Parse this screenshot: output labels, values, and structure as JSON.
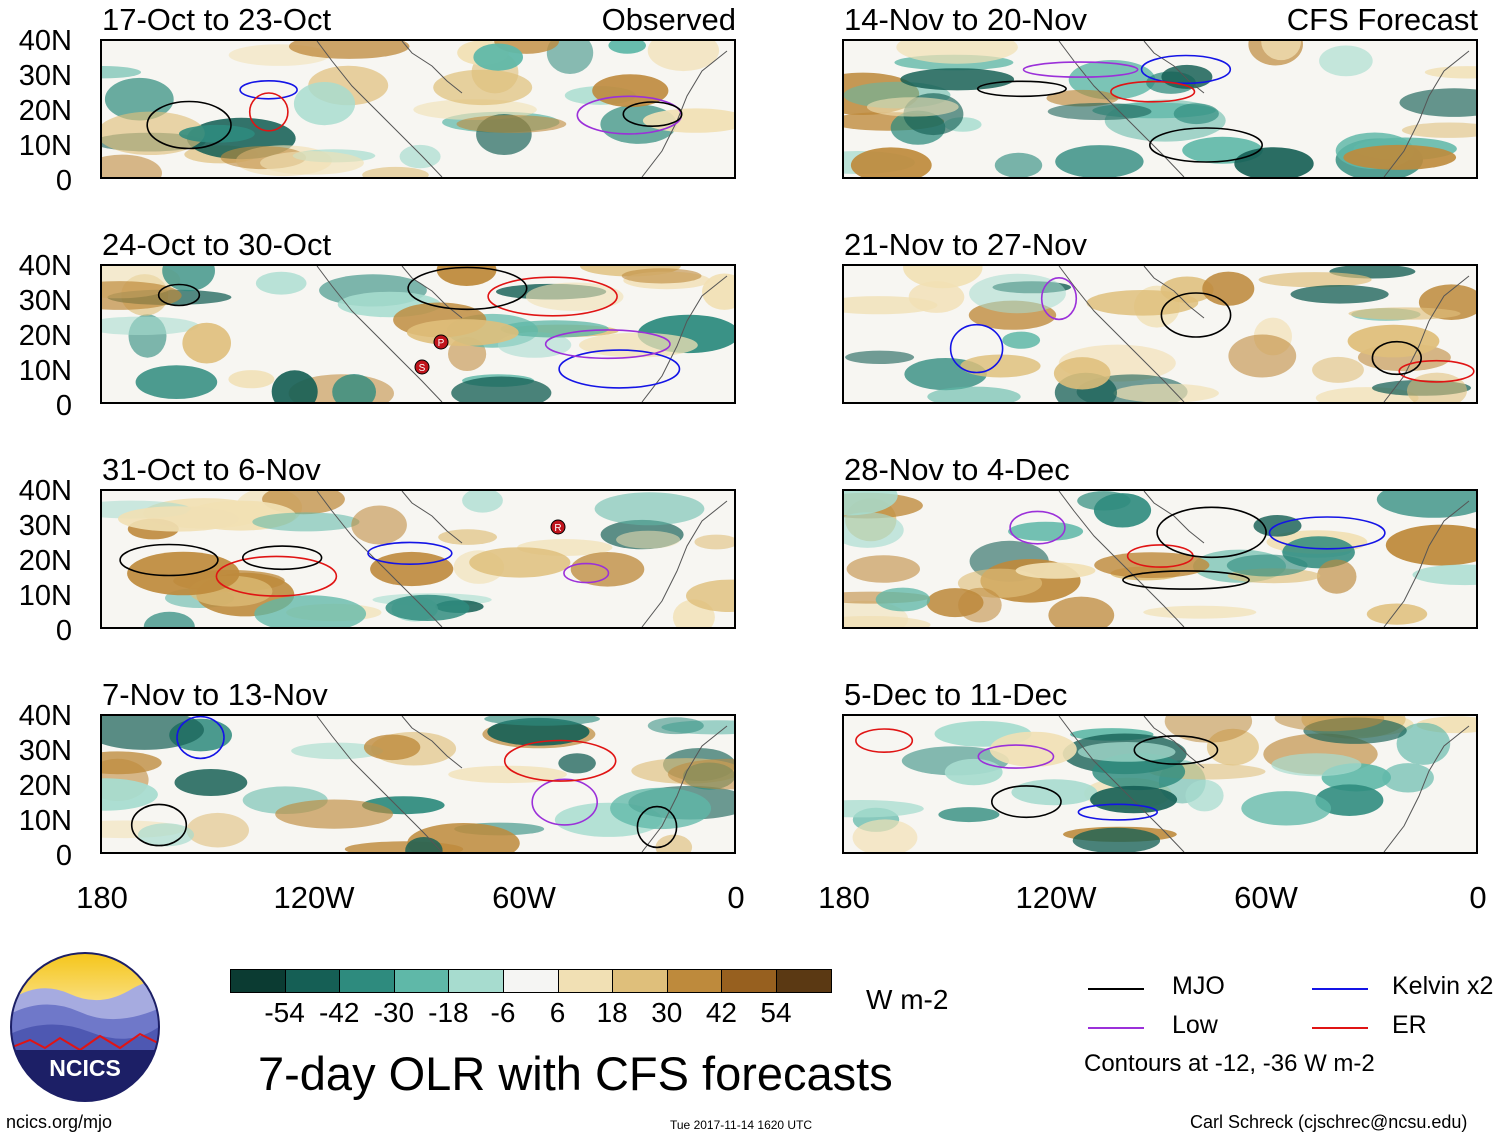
{
  "header": {
    "left_label": "Observed",
    "right_label": "CFS Forecast"
  },
  "panels_left": [
    {
      "title": "17-Oct to 23-Oct"
    },
    {
      "title": "24-Oct to 30-Oct"
    },
    {
      "title": "31-Oct to 6-Nov"
    },
    {
      "title": "7-Nov to 13-Nov"
    }
  ],
  "panels_right": [
    {
      "title": "14-Nov to 20-Nov"
    },
    {
      "title": "21-Nov to 27-Nov"
    },
    {
      "title": "28-Nov to 4-Dec"
    },
    {
      "title": "5-Dec to 11-Dec"
    }
  ],
  "axes": {
    "y_ticks": [
      "40N",
      "30N",
      "20N",
      "10N",
      "0"
    ],
    "x_ticks": [
      "180",
      "120W",
      "60W",
      "0"
    ]
  },
  "storm_markers": [
    "P",
    "S",
    "R"
  ],
  "colorbar": {
    "unit": "W m-2",
    "labels": [
      "-54",
      "-42",
      "-30",
      "-18",
      "-6",
      "6",
      "18",
      "30",
      "42",
      "54"
    ],
    "colors": [
      "#0b3b32",
      "#155f55",
      "#2e8b7e",
      "#5fb8a8",
      "#a7dccf",
      "#f5f5f3",
      "#f1e0b4",
      "#dfbf7b",
      "#be8a3c",
      "#97601f",
      "#5b3913"
    ]
  },
  "legend": {
    "items": [
      {
        "label": "MJO",
        "color": "#000000"
      },
      {
        "label": "Kelvin x2",
        "color": "#1414e6"
      },
      {
        "label": "Low",
        "color": "#9b30d9"
      },
      {
        "label": "ER",
        "color": "#e01414"
      }
    ],
    "contours_note": "Contours at -12, -36 W m-2"
  },
  "footer": {
    "logo_text": "NCICS",
    "main_title": "7-day OLR with CFS forecasts",
    "url": "ncics.org/mjo",
    "timestamp": "Tue 2017-11-14 1620 UTC",
    "credit": "Carl Schreck (cjschrec@ncsu.edu)"
  }
}
